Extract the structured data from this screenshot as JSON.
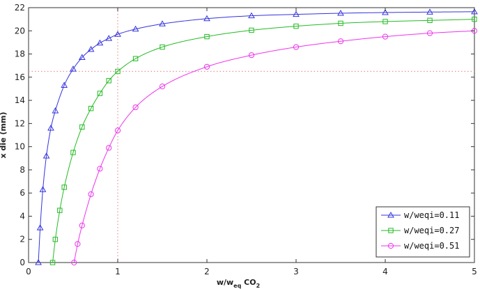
{
  "chart_data": {
    "type": "scatter",
    "xlabel": "w/w",
    "xlabel_sub": "eq",
    "xlabel_tail": " CO",
    "xlabel_tail_sub": "2",
    "ylabel": "x die (mm)",
    "xlim": [
      0,
      5
    ],
    "ylim": [
      0,
      22
    ],
    "xticks": [
      0,
      1,
      2,
      3,
      4,
      5
    ],
    "yticks": [
      0,
      2,
      4,
      6,
      8,
      10,
      12,
      14,
      16,
      18,
      20,
      22
    ],
    "grid": false,
    "legend_position": "bottom-right",
    "reference_lines": {
      "x": 1,
      "y": 16.5,
      "color": "#e89090",
      "style": "dotted"
    },
    "series": [
      {
        "name": "w/weqi=0.11",
        "marker": "triangle",
        "color": "#3333dd",
        "x": [
          0.11,
          0.13,
          0.16,
          0.2,
          0.25,
          0.3,
          0.4,
          0.5,
          0.6,
          0.7,
          0.8,
          0.9,
          1.0,
          1.2,
          1.5,
          2.0,
          2.5,
          3.0,
          3.5,
          4.0,
          4.5,
          5.0
        ],
        "y": [
          0.0,
          3.0,
          6.3,
          9.2,
          11.6,
          13.1,
          15.3,
          16.7,
          17.7,
          18.4,
          18.95,
          19.35,
          19.7,
          20.15,
          20.6,
          21.05,
          21.3,
          21.42,
          21.52,
          21.58,
          21.62,
          21.65
        ]
      },
      {
        "name": "w/weqi=0.27",
        "marker": "square",
        "color": "#22bb22",
        "x": [
          0.27,
          0.3,
          0.35,
          0.4,
          0.5,
          0.6,
          0.7,
          0.8,
          0.9,
          1.0,
          1.2,
          1.5,
          2.0,
          2.5,
          3.0,
          3.5,
          4.0,
          4.5,
          5.0
        ],
        "y": [
          0.0,
          2.0,
          4.5,
          6.5,
          9.5,
          11.7,
          13.3,
          14.6,
          15.7,
          16.5,
          17.6,
          18.6,
          19.5,
          20.05,
          20.4,
          20.65,
          20.8,
          20.9,
          21.0
        ]
      },
      {
        "name": "w/weqi=0.51",
        "marker": "circle",
        "color": "#ee33ee",
        "x": [
          0.51,
          0.55,
          0.6,
          0.7,
          0.8,
          0.9,
          1.0,
          1.2,
          1.5,
          2.0,
          2.5,
          3.0,
          3.5,
          4.0,
          4.5,
          5.0
        ],
        "y": [
          0.0,
          1.6,
          3.2,
          5.9,
          8.1,
          9.9,
          11.4,
          13.4,
          15.2,
          16.9,
          17.9,
          18.6,
          19.1,
          19.5,
          19.8,
          20.0
        ]
      }
    ]
  }
}
